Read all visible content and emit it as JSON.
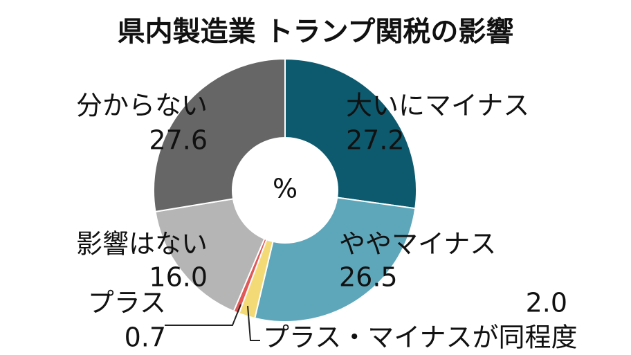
{
  "chart_data": {
    "type": "donut",
    "title": "県内製造業 トランプ関税の影響",
    "center_label": "%",
    "categories": [
      "大いにマイナス",
      "ややマイナス",
      "プラス・マイナスが同程度",
      "プラス",
      "影響はない",
      "分からない"
    ],
    "values": [
      27.2,
      26.5,
      2.0,
      0.7,
      16.0,
      27.6
    ],
    "value_labels": [
      "27.2",
      "26.5",
      "2.0",
      "0.7",
      "16.0",
      "27.6"
    ],
    "colors": [
      "#0d5a6f",
      "#5ea7ba",
      "#f3da76",
      "#e05858",
      "#b5b5b5",
      "#666666"
    ]
  }
}
